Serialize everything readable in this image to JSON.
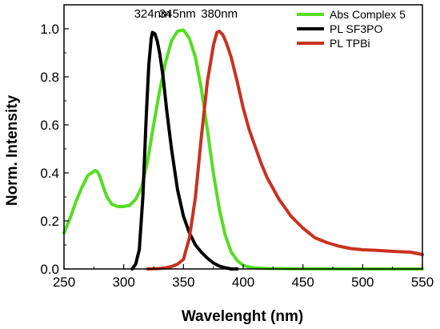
{
  "chart_data": {
    "type": "line",
    "xlabel": "Wavelenght (nm)",
    "ylabel": "Norm. Intensity",
    "xlim": [
      250,
      550
    ],
    "ylim": [
      0.0,
      1.1
    ],
    "x_ticks": [
      250,
      300,
      350,
      400,
      450,
      500,
      550
    ],
    "y_ticks": [
      0.0,
      0.2,
      0.4,
      0.6,
      0.8,
      1.0
    ],
    "y_tick_labels": [
      "0.0",
      "0.2",
      "0.4",
      "0.6",
      "0.8",
      "1.0"
    ],
    "grid": false,
    "legend_position": "top-right",
    "annotations": [
      {
        "text": "324nm",
        "x": 324,
        "y": 1.0
      },
      {
        "text": "345nm",
        "x": 345,
        "y": 1.0
      },
      {
        "text": "380nm",
        "x": 380,
        "y": 1.0
      }
    ],
    "series": [
      {
        "name": "Abs Complex 5",
        "color": "#55dd22",
        "x": [
          250,
          255,
          260,
          265,
          270,
          273,
          276,
          278,
          280,
          283,
          286,
          290,
          295,
          300,
          305,
          310,
          315,
          320,
          325,
          330,
          335,
          340,
          345,
          350,
          355,
          360,
          365,
          370,
          375,
          380,
          385,
          390,
          395,
          400,
          405,
          410,
          420,
          450,
          500,
          550
        ],
        "y": [
          0.15,
          0.21,
          0.28,
          0.34,
          0.39,
          0.4,
          0.41,
          0.405,
          0.385,
          0.34,
          0.3,
          0.27,
          0.26,
          0.26,
          0.265,
          0.29,
          0.34,
          0.45,
          0.6,
          0.74,
          0.86,
          0.95,
          0.99,
          0.995,
          0.96,
          0.88,
          0.75,
          0.58,
          0.4,
          0.25,
          0.14,
          0.07,
          0.035,
          0.015,
          0.008,
          0.004,
          0.002,
          0.001,
          0.0,
          0.0
        ]
      },
      {
        "name": "PL SF3PO",
        "color": "#000000",
        "x": [
          307,
          310,
          313,
          316,
          319,
          321,
          323,
          324,
          326,
          328,
          330,
          333,
          336,
          340,
          345,
          350,
          355,
          360,
          365,
          370,
          375,
          380,
          385,
          390,
          395
        ],
        "y": [
          0.0,
          0.02,
          0.08,
          0.3,
          0.65,
          0.85,
          0.96,
          0.985,
          0.98,
          0.95,
          0.9,
          0.8,
          0.66,
          0.5,
          0.33,
          0.22,
          0.15,
          0.1,
          0.07,
          0.045,
          0.025,
          0.012,
          0.005,
          0.0,
          0.0
        ]
      },
      {
        "name": "PL TPBi",
        "color": "#c83220",
        "x": [
          320,
          330,
          335,
          340,
          345,
          350,
          355,
          360,
          365,
          370,
          375,
          378,
          380,
          383,
          386,
          390,
          395,
          400,
          405,
          410,
          415,
          420,
          430,
          440,
          450,
          460,
          470,
          480,
          490,
          500,
          510,
          520,
          530,
          540,
          545,
          550
        ],
        "y": [
          0.0,
          0.002,
          0.005,
          0.01,
          0.02,
          0.04,
          0.13,
          0.3,
          0.55,
          0.78,
          0.93,
          0.985,
          0.99,
          0.975,
          0.94,
          0.88,
          0.78,
          0.67,
          0.58,
          0.51,
          0.44,
          0.38,
          0.29,
          0.22,
          0.17,
          0.13,
          0.11,
          0.095,
          0.085,
          0.08,
          0.078,
          0.075,
          0.072,
          0.07,
          0.065,
          0.06
        ]
      }
    ]
  }
}
